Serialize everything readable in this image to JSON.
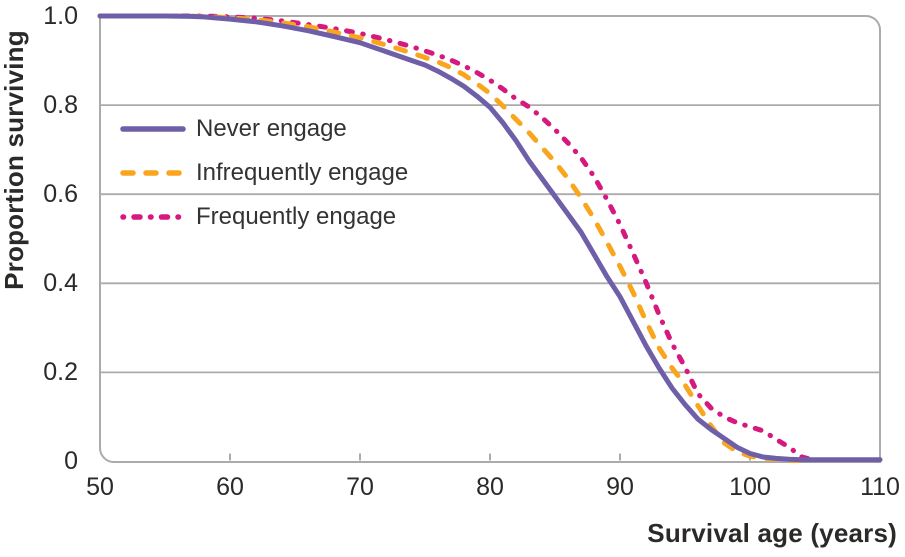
{
  "colors": {
    "grid": "#ABABAB",
    "text": "#2B2A29"
  },
  "chart_data": {
    "type": "line",
    "title": "",
    "xlabel": "Survival age (years)",
    "ylabel": "Proportion surviving",
    "xlim": [
      50,
      110
    ],
    "ylim": [
      0,
      1.0
    ],
    "x_ticks": [
      50,
      60,
      70,
      80,
      90,
      100,
      110
    ],
    "y_ticks": [
      "1.0",
      "0.8",
      "0.6",
      "0.4",
      "0.2",
      "0"
    ],
    "grid": "horizontal gridlines at 0.2 intervals",
    "legend_position": "upper-left inside plot",
    "series": [
      {
        "id": "never",
        "name": "Never engage",
        "color": "#6F5FA9",
        "style": "solid",
        "points": [
          [
            50,
            1.0
          ],
          [
            55,
            1.0
          ],
          [
            57,
            0.999
          ],
          [
            58,
            0.998
          ],
          [
            60,
            0.993
          ],
          [
            62,
            0.987
          ],
          [
            64,
            0.978
          ],
          [
            66,
            0.967
          ],
          [
            68,
            0.954
          ],
          [
            70,
            0.94
          ],
          [
            71,
            0.93
          ],
          [
            72,
            0.92
          ],
          [
            73,
            0.91
          ],
          [
            74,
            0.9
          ],
          [
            75,
            0.89
          ],
          [
            76,
            0.876
          ],
          [
            77,
            0.86
          ],
          [
            78,
            0.842
          ],
          [
            79,
            0.82
          ],
          [
            80,
            0.795
          ],
          [
            81,
            0.76
          ],
          [
            82,
            0.72
          ],
          [
            83,
            0.675
          ],
          [
            84,
            0.635
          ],
          [
            85,
            0.595
          ],
          [
            86,
            0.555
          ],
          [
            87,
            0.515
          ],
          [
            88,
            0.465
          ],
          [
            89,
            0.415
          ],
          [
            90,
            0.37
          ],
          [
            91,
            0.315
          ],
          [
            92,
            0.26
          ],
          [
            93,
            0.21
          ],
          [
            94,
            0.165
          ],
          [
            95,
            0.128
          ],
          [
            96,
            0.095
          ],
          [
            97,
            0.072
          ],
          [
            98,
            0.052
          ],
          [
            99,
            0.032
          ],
          [
            100,
            0.018
          ],
          [
            101,
            0.01
          ],
          [
            102,
            0.007
          ],
          [
            103,
            0.005
          ],
          [
            104,
            0.004
          ],
          [
            106,
            0.004
          ],
          [
            108,
            0.004
          ],
          [
            110,
            0.004
          ]
        ]
      },
      {
        "id": "infrequently",
        "name": "Infrequently engage",
        "color": "#F9A61E",
        "style": "dashed",
        "points": [
          [
            50,
            1.0
          ],
          [
            56,
            1.0
          ],
          [
            58,
            0.999
          ],
          [
            60,
            0.996
          ],
          [
            62,
            0.992
          ],
          [
            64,
            0.985
          ],
          [
            66,
            0.976
          ],
          [
            68,
            0.964
          ],
          [
            70,
            0.951
          ],
          [
            72,
            0.935
          ],
          [
            74,
            0.917
          ],
          [
            76,
            0.897
          ],
          [
            77,
            0.884
          ],
          [
            78,
            0.868
          ],
          [
            79,
            0.848
          ],
          [
            80,
            0.826
          ],
          [
            81,
            0.798
          ],
          [
            82,
            0.768
          ],
          [
            83,
            0.738
          ],
          [
            84,
            0.705
          ],
          [
            85,
            0.672
          ],
          [
            86,
            0.635
          ],
          [
            87,
            0.592
          ],
          [
            88,
            0.545
          ],
          [
            89,
            0.492
          ],
          [
            90,
            0.438
          ],
          [
            91,
            0.38
          ],
          [
            92,
            0.315
          ],
          [
            93,
            0.255
          ],
          [
            94,
            0.21
          ],
          [
            95,
            0.172
          ],
          [
            96,
            0.125
          ],
          [
            97,
            0.08
          ],
          [
            98,
            0.042
          ],
          [
            99,
            0.022
          ],
          [
            100,
            0.012
          ],
          [
            101,
            0.007
          ],
          [
            102,
            0.005
          ],
          [
            103,
            0.003
          ],
          [
            104,
            0.002
          ]
        ]
      },
      {
        "id": "frequently",
        "name": "Frequently engage",
        "color": "#D5197F",
        "style": "dash-dot",
        "points": [
          [
            50,
            1.0
          ],
          [
            58,
            1.0
          ],
          [
            60,
            0.998
          ],
          [
            62,
            0.995
          ],
          [
            64,
            0.989
          ],
          [
            66,
            0.981
          ],
          [
            68,
            0.972
          ],
          [
            70,
            0.961
          ],
          [
            72,
            0.947
          ],
          [
            74,
            0.931
          ],
          [
            76,
            0.912
          ],
          [
            77,
            0.901
          ],
          [
            78,
            0.888
          ],
          [
            79,
            0.873
          ],
          [
            80,
            0.856
          ],
          [
            81,
            0.836
          ],
          [
            82,
            0.814
          ],
          [
            83,
            0.796
          ],
          [
            84,
            0.772
          ],
          [
            85,
            0.745
          ],
          [
            86,
            0.715
          ],
          [
            87,
            0.682
          ],
          [
            88,
            0.64
          ],
          [
            89,
            0.588
          ],
          [
            90,
            0.532
          ],
          [
            91,
            0.468
          ],
          [
            92,
            0.402
          ],
          [
            93,
            0.33
          ],
          [
            94,
            0.265
          ],
          [
            95,
            0.212
          ],
          [
            96,
            0.152
          ],
          [
            97,
            0.12
          ],
          [
            98,
            0.1
          ],
          [
            99,
            0.087
          ],
          [
            100,
            0.078
          ],
          [
            101,
            0.069
          ],
          [
            102,
            0.05
          ],
          [
            103,
            0.032
          ],
          [
            104,
            0.01
          ],
          [
            105,
            0.002
          ]
        ]
      }
    ]
  }
}
